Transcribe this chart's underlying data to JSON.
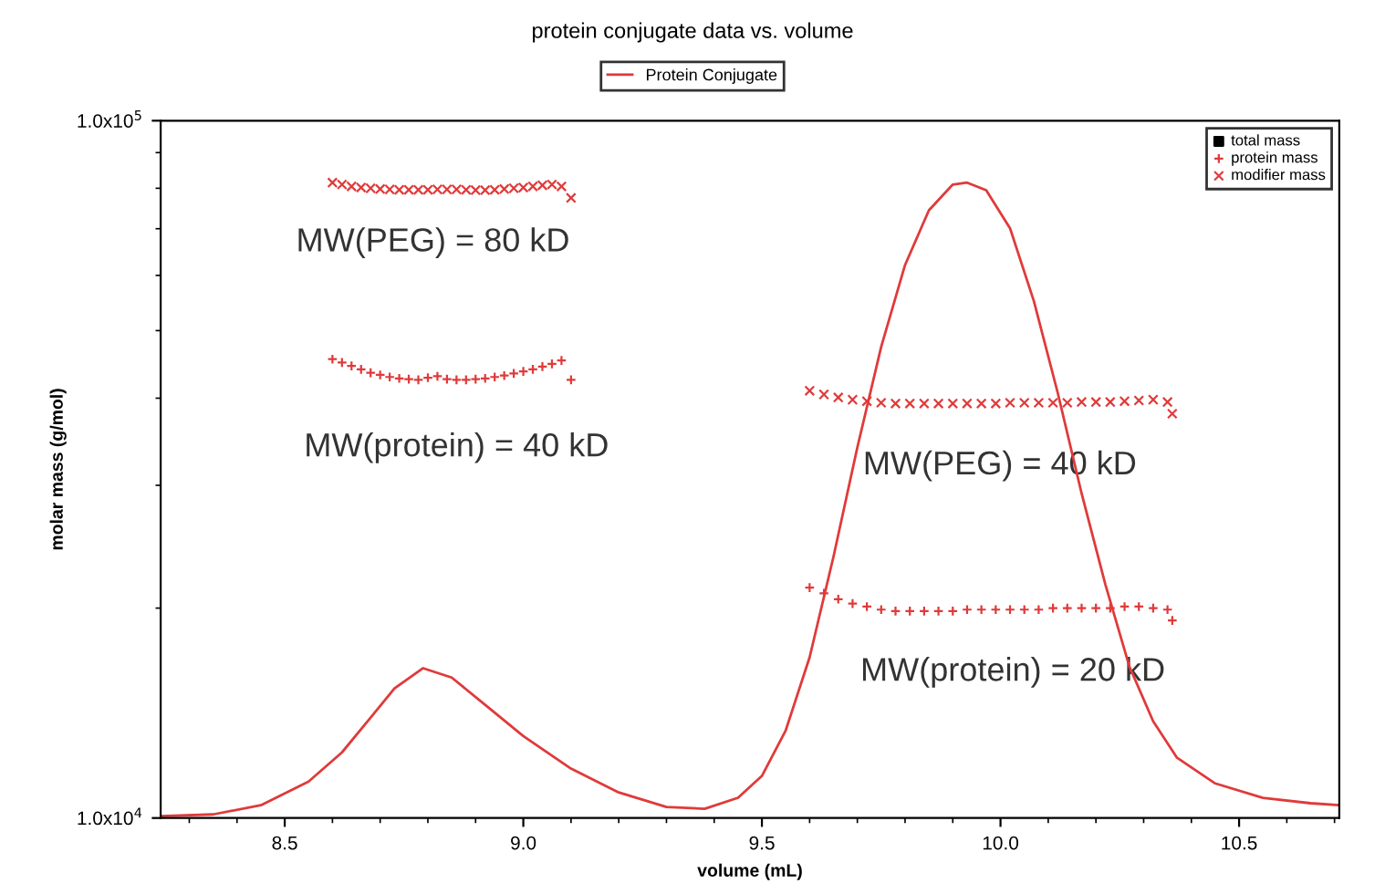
{
  "chart_data": {
    "type": "scatter",
    "title": "protein conjugate data vs. volume",
    "xlabel": "volume (mL)",
    "ylabel": "molar mass (g/mol)",
    "xlim": [
      8.24,
      10.71
    ],
    "xticks": [
      {
        "value": 8.5,
        "label": "8.5"
      },
      {
        "value": 9.0,
        "label": "9.0"
      },
      {
        "value": 9.5,
        "label": "9.5"
      },
      {
        "value": 10.0,
        "label": "10.0"
      },
      {
        "value": 10.5,
        "label": "10.5"
      }
    ],
    "ylim": [
      10000,
      100000
    ],
    "yticks": [
      {
        "value": 10000,
        "label": "1.0x10$^{4}$"
      },
      {
        "value": 100000,
        "label": "1.0x10$^{5}$"
      }
    ],
    "log": "y",
    "grid": false,
    "legend": "top right",
    "series": [
      {
        "name": "Protein Conjugate",
        "type": "line",
        "color": "#e03a3a",
        "marker": "none",
        "line_style": "solid",
        "x": [
          8.24,
          8.35,
          8.45,
          8.55,
          8.62,
          8.68,
          8.73,
          8.79,
          8.85,
          8.92,
          9.0,
          9.1,
          9.2,
          9.3,
          9.38,
          9.45,
          9.5,
          9.55,
          9.6,
          9.65,
          9.7,
          9.75,
          9.8,
          9.85,
          9.9,
          9.93,
          9.97,
          10.02,
          10.07,
          10.12,
          10.17,
          10.22,
          10.27,
          10.32,
          10.37,
          10.45,
          10.55,
          10.65,
          10.71
        ],
        "values": [
          10060,
          10120,
          10430,
          11280,
          12420,
          13930,
          15340,
          16400,
          15900,
          14530,
          13110,
          11770,
          10880,
          10370,
          10310,
          10690,
          11490,
          13360,
          17000,
          23700,
          34000,
          47400,
          62100,
          74400,
          81000,
          81500,
          79500,
          70100,
          55100,
          40700,
          29200,
          21600,
          16500,
          13760,
          12200,
          11210,
          10690,
          10500,
          10430
        ]
      },
      {
        "name": "total mass",
        "color": "#000000",
        "marker": "square"
      },
      {
        "name": "protein mass",
        "color": "#e03a3a",
        "marker": "plus",
        "x": [
          8.6,
          8.62,
          8.64,
          8.66,
          8.68,
          8.7,
          8.72,
          8.74,
          8.76,
          8.78,
          8.8,
          8.82,
          8.84,
          8.86,
          8.88,
          8.9,
          8.92,
          8.94,
          8.96,
          8.98,
          9.0,
          9.02,
          9.04,
          9.06,
          9.08,
          9.1,
          9.6,
          9.63,
          9.66,
          9.69,
          9.72,
          9.75,
          9.78,
          9.81,
          9.84,
          9.87,
          9.9,
          9.93,
          9.96,
          9.99,
          10.02,
          10.05,
          10.08,
          10.11,
          10.14,
          10.17,
          10.2,
          10.23,
          10.26,
          10.29,
          10.32,
          10.35,
          10.36
        ],
        "values": [
          45500,
          45000,
          44500,
          44000,
          43500,
          43200,
          42900,
          42700,
          42600,
          42500,
          42800,
          43000,
          42600,
          42500,
          42500,
          42600,
          42700,
          42900,
          43100,
          43400,
          43700,
          44000,
          44400,
          44800,
          45300,
          42500,
          21400,
          21000,
          20600,
          20300,
          20100,
          19900,
          19800,
          19800,
          19800,
          19800,
          19800,
          19900,
          19900,
          19900,
          19900,
          19900,
          19900,
          20000,
          20000,
          20000,
          20000,
          20000,
          20100,
          20100,
          20000,
          19900,
          19200
        ]
      },
      {
        "name": "modifier mass",
        "color": "#e03a3a",
        "marker": "cross",
        "x": [
          8.6,
          8.62,
          8.64,
          8.66,
          8.68,
          8.7,
          8.72,
          8.74,
          8.76,
          8.78,
          8.8,
          8.82,
          8.84,
          8.86,
          8.88,
          8.9,
          8.92,
          8.94,
          8.96,
          8.98,
          9.0,
          9.02,
          9.04,
          9.06,
          9.08,
          9.1,
          9.6,
          9.63,
          9.66,
          9.69,
          9.72,
          9.75,
          9.78,
          9.81,
          9.84,
          9.87,
          9.9,
          9.93,
          9.96,
          9.99,
          10.02,
          10.05,
          10.08,
          10.11,
          10.14,
          10.17,
          10.2,
          10.23,
          10.26,
          10.29,
          10.32,
          10.35,
          10.36
        ],
        "values": [
          81500,
          81000,
          80500,
          80200,
          80000,
          79800,
          79700,
          79600,
          79600,
          79600,
          79600,
          79700,
          79700,
          79700,
          79600,
          79500,
          79500,
          79600,
          79800,
          80000,
          80200,
          80500,
          80800,
          81000,
          80500,
          77500,
          41000,
          40500,
          40100,
          39800,
          39600,
          39400,
          39300,
          39300,
          39300,
          39300,
          39300,
          39300,
          39300,
          39300,
          39400,
          39400,
          39400,
          39400,
          39400,
          39500,
          39500,
          39500,
          39600,
          39700,
          39800,
          39500,
          38000
        ]
      }
    ],
    "annotations": [
      "MW(PEG) = 80 kD",
      "MW(protein) = 40 kD",
      "MW(PEG) = 40 kD",
      "MW(protein) = 20 kD"
    ]
  }
}
